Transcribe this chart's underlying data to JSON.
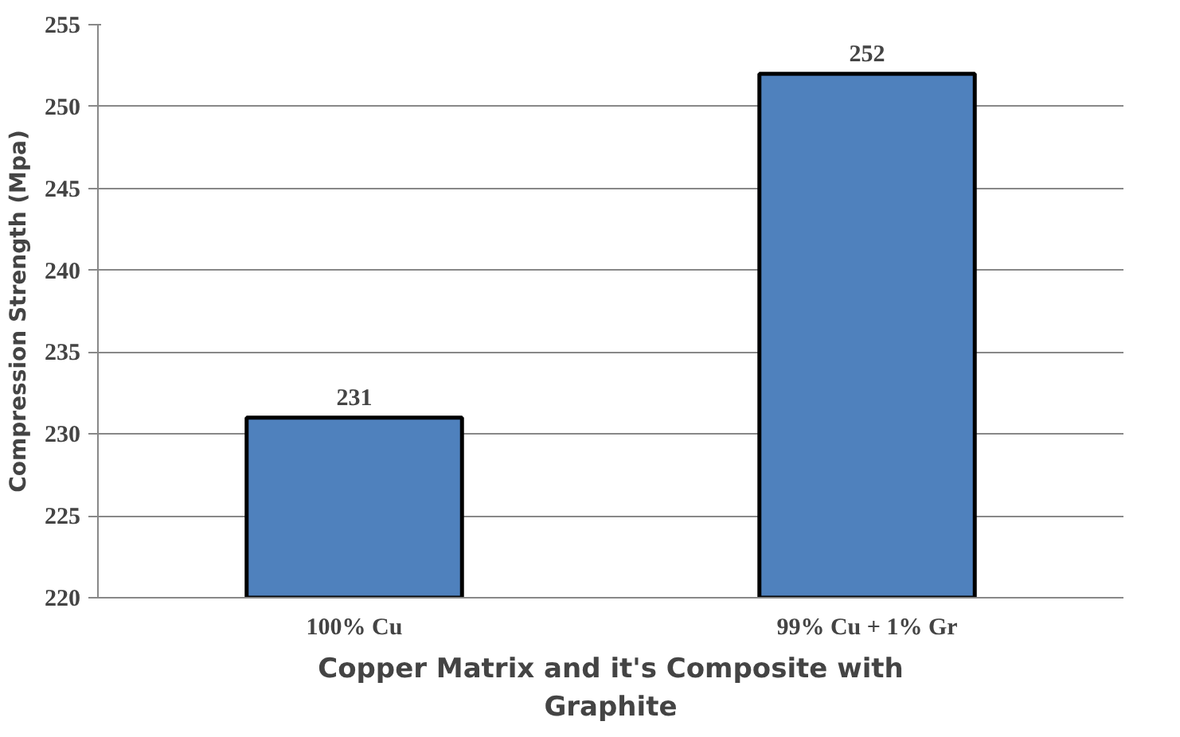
{
  "chart_data": {
    "type": "bar",
    "xlabel": "Copper Matrix and it's Composite with Graphite",
    "ylabel": "Compression Strength (Mpa)",
    "categories": [
      "100% Cu",
      "99% Cu + 1% Gr"
    ],
    "values": [
      231,
      252
    ],
    "color": "#4f81bd",
    "ylim": [
      220,
      255
    ],
    "yticks": [
      220,
      225,
      230,
      235,
      240,
      245,
      250,
      255
    ],
    "grid": "y",
    "data_labels": true
  }
}
